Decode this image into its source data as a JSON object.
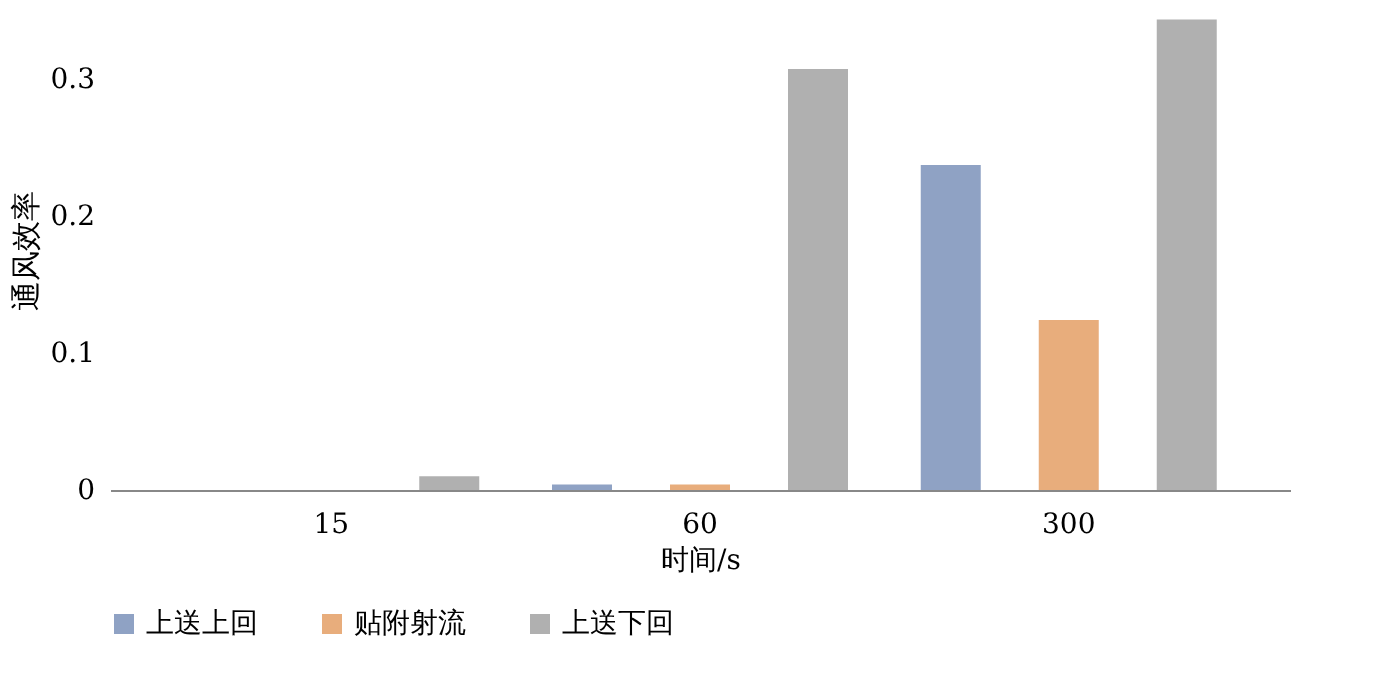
{
  "chart_data": {
    "type": "bar",
    "xlabel": "时间/s",
    "ylabel": "通风效率",
    "categories": [
      "15",
      "60",
      "300"
    ],
    "series": [
      {
        "name": "上送上回",
        "color": "#8fa2c4",
        "values": [
          0,
          0.004,
          0.237
        ]
      },
      {
        "name": "贴附射流",
        "color": "#e8ad7c",
        "values": [
          0,
          0.004,
          0.124
        ]
      },
      {
        "name": "上送下回",
        "color": "#b0b0b0",
        "values": [
          0.01,
          0.307,
          0.343
        ]
      }
    ],
    "ylim": [
      0,
      0.35
    ],
    "yticks": [
      0,
      0.1,
      0.2,
      0.3
    ],
    "grid": false,
    "legend": "bottom"
  }
}
